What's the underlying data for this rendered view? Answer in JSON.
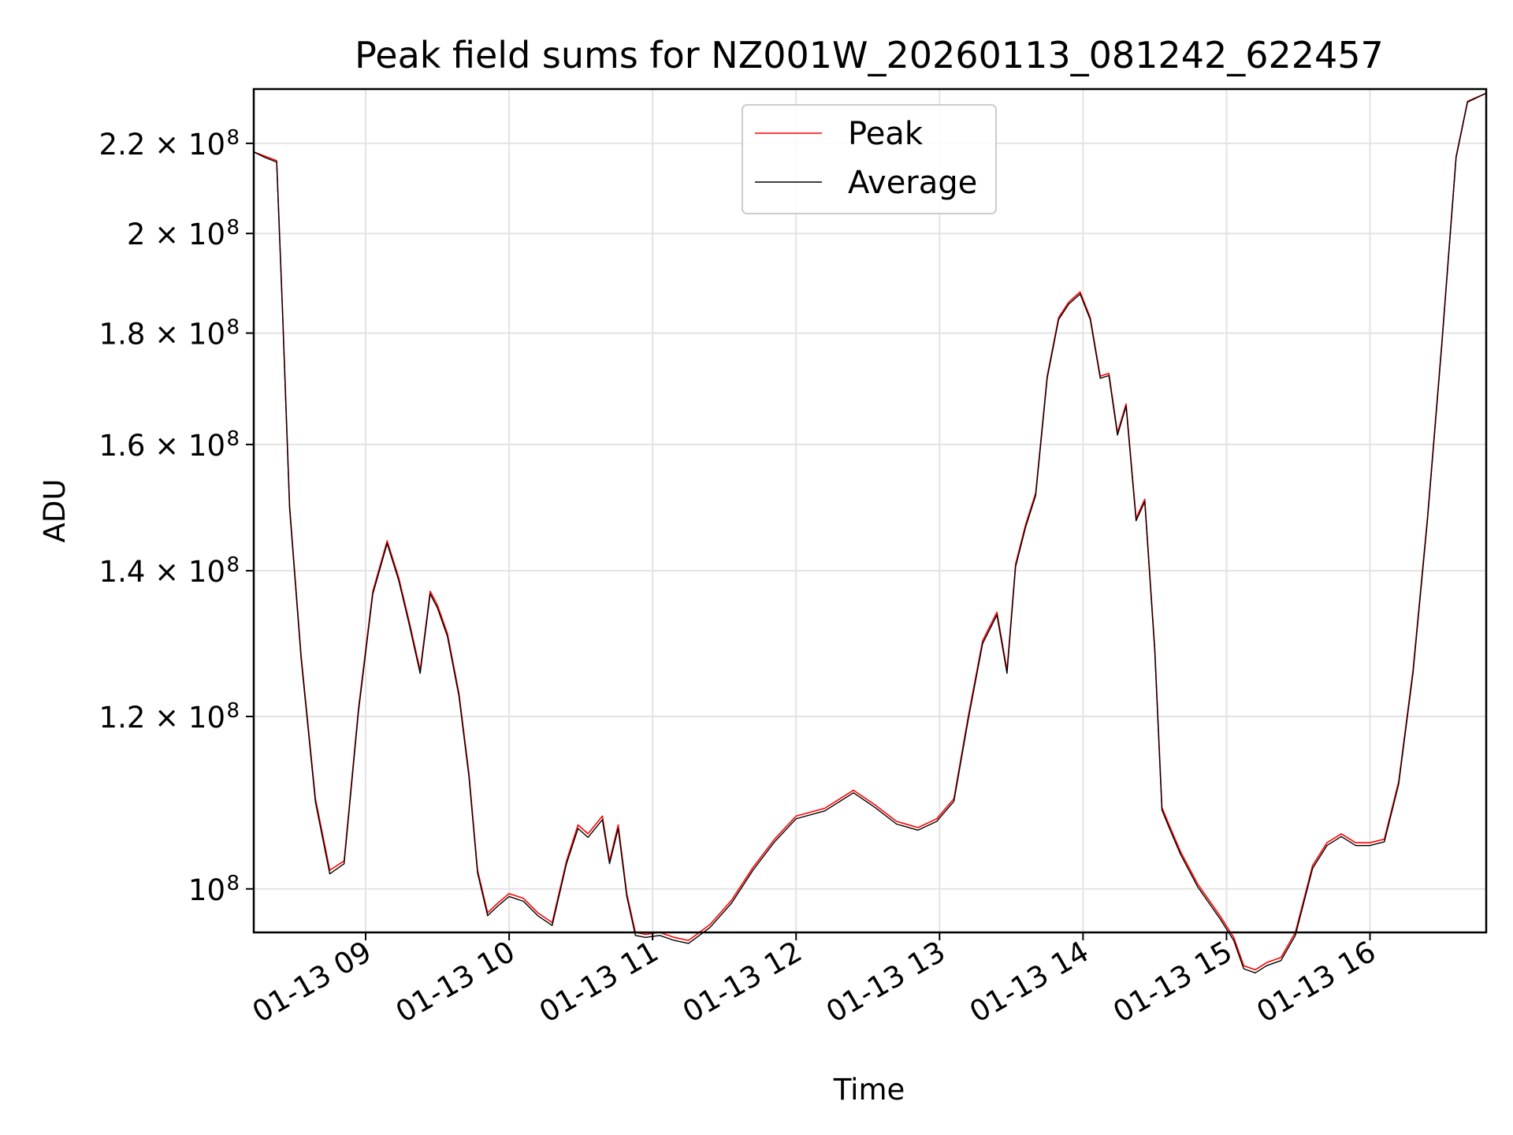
{
  "chart_data": {
    "type": "line",
    "title": "Peak field sums for NZ001W_20260113_081242_622457",
    "xlabel": "Time",
    "ylabel": "ADU",
    "yscale": "log",
    "grid": true,
    "legend_position": "top-center",
    "xlim": [
      8.22,
      16.81
    ],
    "ylim": [
      95500000,
      233000000
    ],
    "x_ticks": [
      {
        "value": 9,
        "label": "01-13 09"
      },
      {
        "value": 10,
        "label": "01-13 10"
      },
      {
        "value": 11,
        "label": "01-13 11"
      },
      {
        "value": 12,
        "label": "01-13 12"
      },
      {
        "value": 13,
        "label": "01-13 13"
      },
      {
        "value": 14,
        "label": "01-13 14"
      },
      {
        "value": 15,
        "label": "01-13 15"
      },
      {
        "value": 16,
        "label": "01-13 16"
      }
    ],
    "y_ticks": [
      {
        "value": 100000000,
        "mantissa": "",
        "exponent": "8"
      },
      {
        "value": 120000000,
        "mantissa": "1.2",
        "exponent": "8"
      },
      {
        "value": 140000000,
        "mantissa": "1.4",
        "exponent": "8"
      },
      {
        "value": 160000000,
        "mantissa": "1.6",
        "exponent": "8"
      },
      {
        "value": 180000000,
        "mantissa": "1.8",
        "exponent": "8"
      },
      {
        "value": 200000000,
        "mantissa": "2",
        "exponent": "8"
      },
      {
        "value": 220000000,
        "mantissa": "2.2",
        "exponent": "8"
      }
    ],
    "tick_base": "10",
    "times_symbol": "×",
    "series": [
      {
        "name": "Peak",
        "color": "#ff0000",
        "x": [
          8.22,
          8.3,
          8.38,
          8.42,
          8.47,
          8.55,
          8.65,
          8.75,
          8.85,
          8.95,
          9.05,
          9.15,
          9.23,
          9.3,
          9.38,
          9.45,
          9.5,
          9.57,
          9.65,
          9.72,
          9.78,
          9.85,
          9.92,
          10.0,
          10.1,
          10.2,
          10.3,
          10.4,
          10.48,
          10.55,
          10.65,
          10.7,
          10.76,
          10.82,
          10.88,
          10.95,
          11.05,
          11.15,
          11.25,
          11.4,
          11.55,
          11.7,
          11.85,
          12.0,
          12.2,
          12.4,
          12.55,
          12.7,
          12.85,
          12.98,
          13.1,
          13.2,
          13.3,
          13.4,
          13.47,
          13.53,
          13.6,
          13.67,
          13.75,
          13.83,
          13.9,
          13.98,
          14.05,
          14.12,
          14.18,
          14.24,
          14.3,
          14.37,
          14.43,
          14.5,
          14.55,
          14.6,
          14.68,
          14.8,
          14.95,
          15.05,
          15.12,
          15.2,
          15.28,
          15.38,
          15.48,
          15.6,
          15.7,
          15.8,
          15.9,
          16.0,
          16.1,
          16.2,
          16.3,
          16.4,
          16.5,
          16.6,
          16.68,
          16.81
        ],
        "y": [
          218000000,
          217000000,
          216000000,
          185000000,
          150000000,
          128000000,
          110000000,
          102000000,
          103000000,
          121000000,
          137000000,
          144500000,
          139000000,
          133000000,
          126000000,
          137000000,
          135000000,
          131000000,
          123000000,
          113000000,
          102000000,
          97500000,
          98500000,
          99500000,
          99000000,
          97500000,
          96500000,
          103000000,
          107000000,
          106000000,
          108000000,
          103000000,
          107000000,
          99500000,
          95500000,
          95300000,
          95500000,
          95000000,
          94700000,
          96300000,
          98800000,
          102300000,
          105400000,
          108000000,
          108900000,
          111000000,
          109300000,
          107400000,
          106700000,
          107700000,
          110000000,
          120000000,
          130000000,
          134000000,
          126000000,
          141000000,
          147000000,
          152000000,
          172000000,
          183000000,
          186000000,
          188000000,
          183000000,
          172000000,
          172500000,
          162000000,
          167000000,
          148000000,
          151000000,
          129000000,
          109000000,
          107000000,
          104000000,
          100500000,
          97300000,
          95000000,
          92200000,
          91800000,
          92500000,
          93000000,
          95500000,
          102500000,
          105000000,
          106000000,
          105000000,
          105000000,
          105400000,
          112000000,
          126000000,
          148000000,
          178000000,
          217000000,
          230000000,
          232000000
        ]
      },
      {
        "name": "Average",
        "color": "#000000",
        "x": [
          8.22,
          8.3,
          8.38,
          8.42,
          8.47,
          8.55,
          8.65,
          8.75,
          8.85,
          8.95,
          9.05,
          9.15,
          9.23,
          9.3,
          9.38,
          9.45,
          9.5,
          9.57,
          9.65,
          9.72,
          9.78,
          9.85,
          9.92,
          10.0,
          10.1,
          10.2,
          10.3,
          10.4,
          10.48,
          10.55,
          10.65,
          10.7,
          10.76,
          10.82,
          10.88,
          10.95,
          11.05,
          11.15,
          11.25,
          11.4,
          11.55,
          11.7,
          11.85,
          12.0,
          12.2,
          12.4,
          12.55,
          12.7,
          12.85,
          12.98,
          13.1,
          13.2,
          13.3,
          13.4,
          13.47,
          13.53,
          13.6,
          13.67,
          13.75,
          13.83,
          13.9,
          13.98,
          14.05,
          14.12,
          14.18,
          14.24,
          14.3,
          14.37,
          14.43,
          14.5,
          14.55,
          14.6,
          14.68,
          14.8,
          14.95,
          15.05,
          15.12,
          15.2,
          15.28,
          15.38,
          15.48,
          15.6,
          15.7,
          15.8,
          15.9,
          16.0,
          16.1,
          16.2,
          16.3,
          16.4,
          16.5,
          16.6,
          16.68,
          16.81
        ],
        "y": [
          218000000,
          216700000,
          215700000,
          184500000,
          149500000,
          127600000,
          109600000,
          101600000,
          102700000,
          120600000,
          136600000,
          144100000,
          138600000,
          132600000,
          125600000,
          136600000,
          134600000,
          130600000,
          122600000,
          112600000,
          101700000,
          97200000,
          98200000,
          99200000,
          98700000,
          97200000,
          96200000,
          102700000,
          106600000,
          105600000,
          107600000,
          102700000,
          106600000,
          99200000,
          95200000,
          95000000,
          95200000,
          94700000,
          94400000,
          96000000,
          98500000,
          102000000,
          105100000,
          107700000,
          108600000,
          110700000,
          109000000,
          107100000,
          106400000,
          107400000,
          109700000,
          119600000,
          129600000,
          133600000,
          125600000,
          140600000,
          146600000,
          151600000,
          171600000,
          182600000,
          185600000,
          187600000,
          182600000,
          171600000,
          172100000,
          161600000,
          166600000,
          147600000,
          150600000,
          128600000,
          108700000,
          106700000,
          103700000,
          100200000,
          97000000,
          94700000,
          91900000,
          91500000,
          92200000,
          92700000,
          95200000,
          102200000,
          104700000,
          105700000,
          104700000,
          104700000,
          105100000,
          111700000,
          125600000,
          147600000,
          177600000,
          216700000,
          229800000,
          232000000
        ]
      }
    ]
  }
}
